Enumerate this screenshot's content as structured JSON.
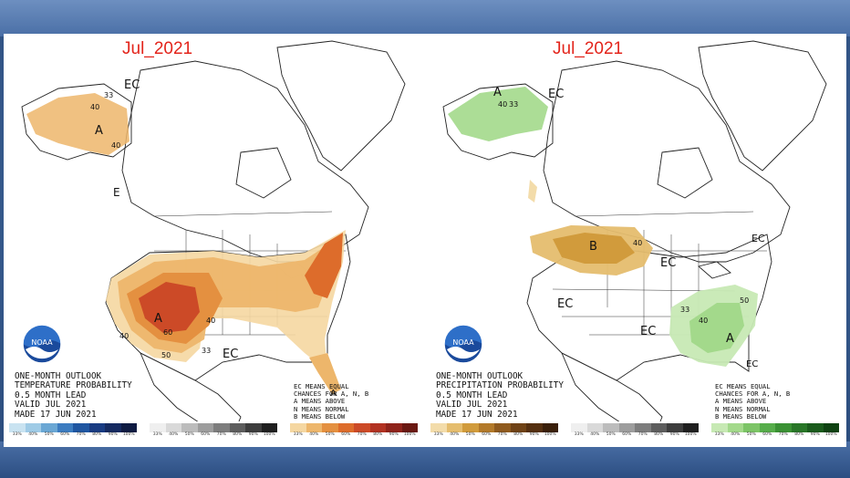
{
  "left_panel": {
    "title": "Jul_2021",
    "info_lines": [
      "ONE-MONTH OUTLOOK",
      "TEMPERATURE PROBABILITY",
      "0.5 MONTH LEAD",
      "VALID JUL 2021",
      "MADE 17 JUN 2021"
    ],
    "legend_lines": [
      "EC MEANS EQUAL",
      "CHANCES FOR A, N, B",
      "A MEANS ABOVE",
      "N MEANS NORMAL",
      "B MEANS BELOW"
    ],
    "labels": {
      "ec_alaska": "EC",
      "ec_coast": "E",
      "ec_south": "EC",
      "a_alaska": "A",
      "a_west": "A",
      "c40_ak1": "40",
      "c33_ak": "33",
      "c40_ak2": "40",
      "c60": "60",
      "c40_w": "40",
      "c50": "50",
      "c40_c": "40",
      "c33_s": "33",
      "a_fl": "A"
    },
    "scale_colors": {
      "below": [
        "#c9e3f1",
        "#9fcbe6",
        "#6aa7d4",
        "#3c7cc0",
        "#1f56a1",
        "#193b82",
        "#152a60",
        "#0f1b42"
      ],
      "normal": [
        "#efefef",
        "#d9d9d9",
        "#bcbcbc",
        "#9d9d9d",
        "#7d7d7d",
        "#5d5d5d",
        "#3d3d3d",
        "#1f1f1f"
      ],
      "above": [
        "#f5d7a1",
        "#edb66b",
        "#e49040",
        "#dd6c2b",
        "#cc4a27",
        "#b23222",
        "#8f231b",
        "#6a1812"
      ]
    }
  },
  "right_panel": {
    "title": "Jul_2021",
    "info_lines": [
      "ONE-MONTH OUTLOOK",
      "PRECIPITATION PROBABILITY",
      "0.5 MONTH LEAD",
      "VALID JUL 2021",
      "MADE 17 JUN 2021"
    ],
    "legend_lines": [
      "EC MEANS EQUAL",
      "CHANCES FOR A, N, B",
      "A MEANS ABOVE",
      "N MEANS NORMAL",
      "B MEANS BELOW"
    ],
    "labels": {
      "a_alaska": "A",
      "ec_alaska": "EC",
      "c40_ak": "40",
      "c33_ak": "33",
      "b_west": "B",
      "c40_b": "40",
      "ec_mid": "EC",
      "ec_w": "EC",
      "ec_s": "EC",
      "c33_se": "33",
      "c40_se": "40",
      "a_se": "A",
      "c50_se": "50",
      "ec_ne": "EC",
      "ec_fl": "EC"
    },
    "scale_colors": {
      "below": [
        "#f3dcaa",
        "#e5bd6e",
        "#d19b3c",
        "#b37a2a",
        "#8f5a1e",
        "#6f4216",
        "#542f10",
        "#3a1f0a"
      ],
      "normal": [
        "#efefef",
        "#d9d9d9",
        "#bcbcbc",
        "#9d9d9d",
        "#7d7d7d",
        "#5d5d5d",
        "#3d3d3d",
        "#1f1f1f"
      ],
      "above": [
        "#c7e9b4",
        "#a3d98b",
        "#7cc466",
        "#56ad4a",
        "#3a9133",
        "#287627",
        "#1a5b1c",
        "#0f4212"
      ]
    }
  },
  "scale_ticks": [
    "33%",
    "40%",
    "50%",
    "60%",
    "70%",
    "80%",
    "90%",
    "100%"
  ],
  "logo_text": "NOAA"
}
